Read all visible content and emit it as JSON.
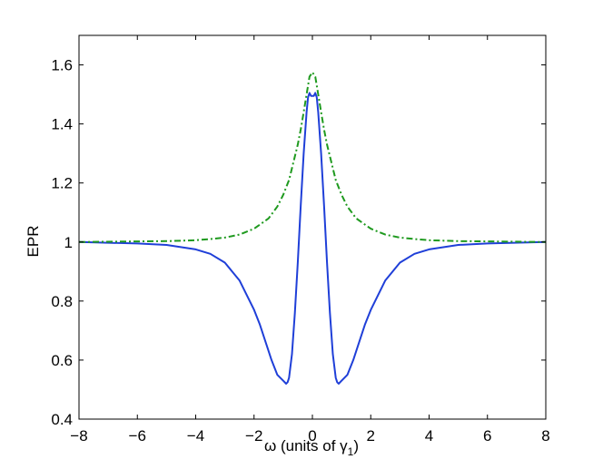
{
  "chart_data": {
    "type": "line",
    "title": "",
    "xlabel": "ω (units of γ",
    "xlabel_sub": "1",
    "xlabel_close": ")",
    "ylabel": "EPR",
    "xlim": [
      -8,
      8
    ],
    "ylim": [
      0.4,
      1.7
    ],
    "xticks": [
      -8,
      -6,
      -4,
      -2,
      0,
      2,
      4,
      6,
      8
    ],
    "yticks": [
      0.4,
      0.6,
      0.8,
      1,
      1.2,
      1.4,
      1.6
    ],
    "ytick_labels": [
      "0.4",
      "0.6",
      "0.8",
      "1",
      "1.2",
      "1.4",
      "1.6"
    ],
    "xtick_labels": [
      "−8",
      "−6",
      "−4",
      "−2",
      "0",
      "2",
      "4",
      "6",
      "8"
    ],
    "grid": false,
    "legend": "none",
    "series": [
      {
        "color": "#1f3fd8",
        "style": "solid",
        "x": [
          -8,
          -6,
          -5,
          -4,
          -3.5,
          -3,
          -2.5,
          -2,
          -1.8,
          -1.6,
          -1.4,
          -1.2,
          -1.0,
          -0.9,
          -0.85,
          -0.8,
          -0.7,
          -0.6,
          -0.5,
          -0.4,
          -0.3,
          -0.2,
          -0.15,
          -0.1,
          -0.05,
          0,
          0.05,
          0.1,
          0.15,
          0.2,
          0.3,
          0.4,
          0.5,
          0.6,
          0.7,
          0.8,
          0.85,
          0.9,
          1.0,
          1.2,
          1.4,
          1.6,
          1.8,
          2,
          2.5,
          3,
          3.5,
          4,
          5,
          6,
          8
        ],
        "y": [
          1.0,
          0.995,
          0.99,
          0.975,
          0.96,
          0.93,
          0.87,
          0.77,
          0.72,
          0.66,
          0.6,
          0.55,
          0.53,
          0.52,
          0.525,
          0.54,
          0.62,
          0.76,
          0.93,
          1.12,
          1.3,
          1.44,
          1.49,
          1.505,
          1.495,
          1.495,
          1.495,
          1.505,
          1.49,
          1.44,
          1.3,
          1.12,
          0.93,
          0.76,
          0.62,
          0.54,
          0.525,
          0.52,
          0.53,
          0.55,
          0.6,
          0.66,
          0.72,
          0.77,
          0.87,
          0.93,
          0.96,
          0.975,
          0.99,
          0.995,
          1.0
        ]
      },
      {
        "color": "#1f9a1f",
        "style": "dash-dot",
        "x": [
          -8,
          -6,
          -5,
          -4,
          -3.5,
          -3,
          -2.5,
          -2,
          -1.5,
          -1.2,
          -1.0,
          -0.8,
          -0.6,
          -0.5,
          -0.4,
          -0.3,
          -0.2,
          -0.1,
          0,
          0.1,
          0.2,
          0.3,
          0.4,
          0.5,
          0.6,
          0.8,
          1.0,
          1.2,
          1.5,
          2,
          2.5,
          3,
          3.5,
          4,
          5,
          6,
          8
        ],
        "y": [
          1.0,
          1.002,
          1.003,
          1.006,
          1.01,
          1.015,
          1.025,
          1.045,
          1.08,
          1.12,
          1.16,
          1.21,
          1.29,
          1.33,
          1.38,
          1.44,
          1.5,
          1.56,
          1.575,
          1.56,
          1.5,
          1.44,
          1.38,
          1.33,
          1.29,
          1.21,
          1.16,
          1.12,
          1.08,
          1.045,
          1.025,
          1.015,
          1.01,
          1.006,
          1.003,
          1.002,
          1.0
        ]
      }
    ]
  }
}
